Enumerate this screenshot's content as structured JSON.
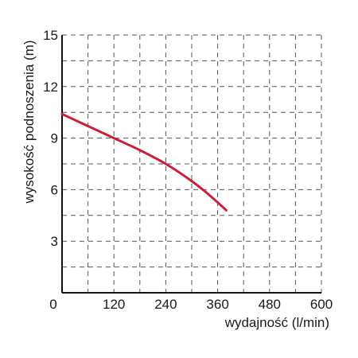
{
  "chart_data": {
    "type": "line",
    "xlabel": "wydajność (l/min)",
    "ylabel": "wysokość podnoszenia (m)",
    "xlim": [
      0,
      600
    ],
    "ylim": [
      0,
      15
    ],
    "xticks": [
      "0",
      "120",
      "240",
      "360",
      "480",
      "600"
    ],
    "yticks": [
      "3",
      "6",
      "9",
      "12",
      "15"
    ],
    "x_minor_step": 60,
    "y_minor_step": 1.5,
    "grid": true,
    "grid_style": "dashed",
    "series": [
      {
        "color": "#cc1f3a",
        "x": [
          0,
          60,
          120,
          180,
          240,
          300,
          340,
          380
        ],
        "y": [
          10.4,
          9.7,
          9.0,
          8.3,
          7.5,
          6.5,
          5.7,
          4.8
        ]
      }
    ]
  }
}
